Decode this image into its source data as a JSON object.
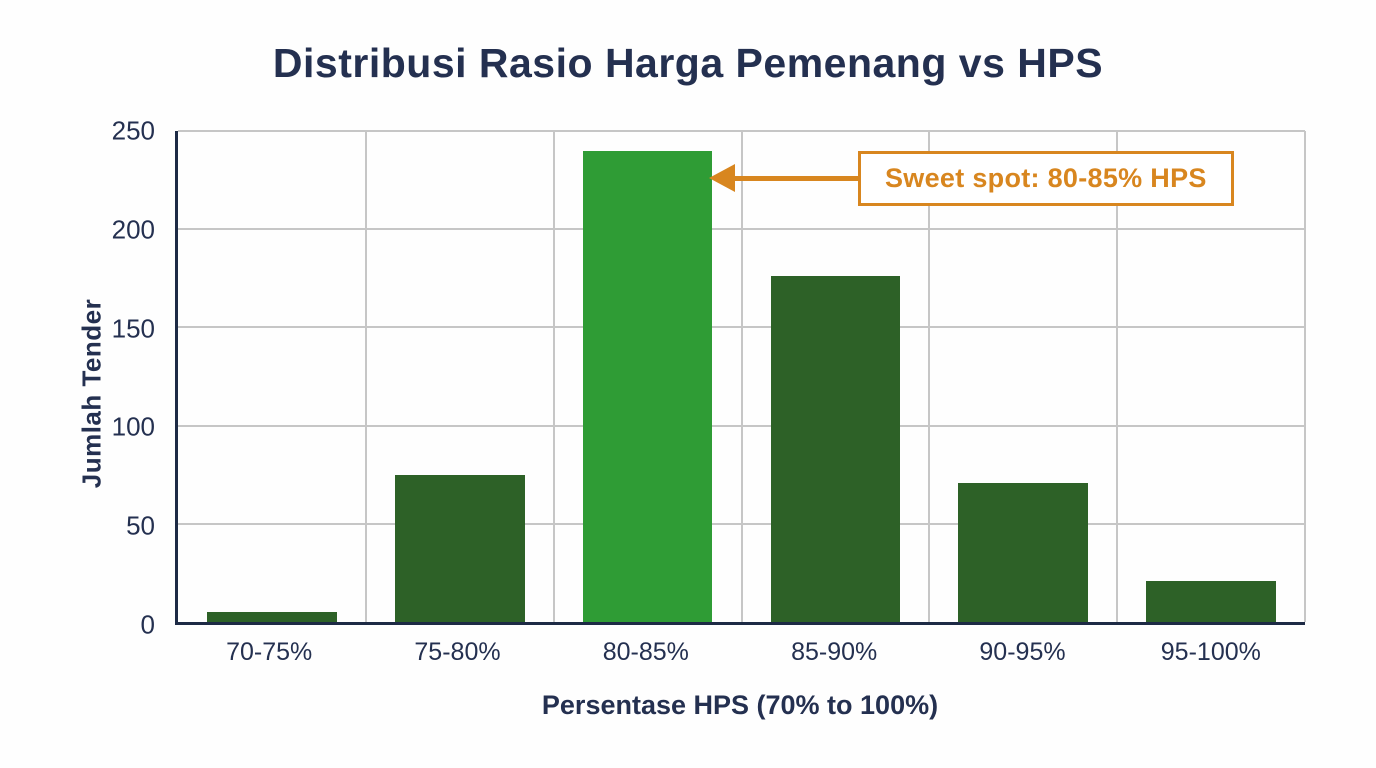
{
  "title": "Distribusi Rasio Harga Pemenang vs HPS",
  "annotation": {
    "label": "Sweet spot: 80-85% HPS"
  },
  "colors": {
    "title_navy": "#243050",
    "bar_green_dark": "#2d6127",
    "bar_green_highlight": "#2f9c35",
    "annotation_orange": "#d8861f",
    "gridline_gray": "#c6c6c6"
  },
  "chart_data": {
    "type": "bar",
    "title": "Distribusi Rasio Harga Pemenang vs HPS",
    "categories": [
      "70-75%",
      "75-80%",
      "80-85%",
      "85-90%",
      "90-95%",
      "95-100%"
    ],
    "values": [
      5,
      75,
      240,
      176,
      71,
      21
    ],
    "highlight_index": 2,
    "xlabel": "Persentase HPS (70% to 100%)",
    "ylabel": "Jumlah Tender",
    "ylim": [
      0,
      250
    ],
    "yticks": [
      0,
      50,
      100,
      150,
      200,
      250
    ],
    "grid": true,
    "legend": false,
    "annotation": {
      "text": "Sweet spot: 80-85% HPS",
      "points_to_category": "80-85%"
    }
  }
}
